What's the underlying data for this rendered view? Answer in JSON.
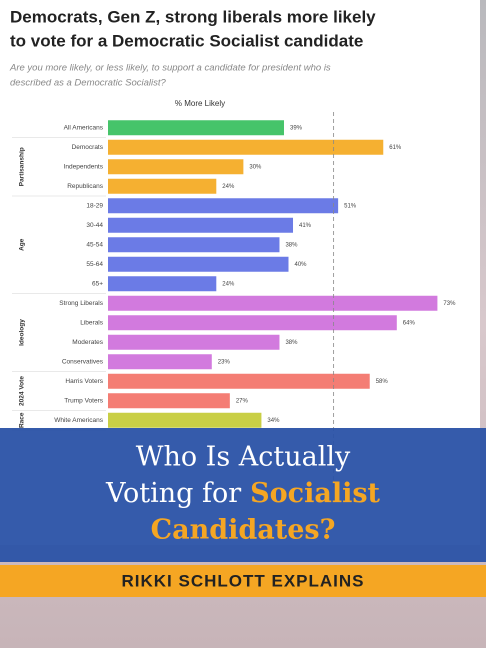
{
  "chart_data": {
    "type": "bar",
    "orientation": "horizontal",
    "title_lines": [
      "Democrats, Gen Z, strong liberals more likely",
      "to vote for a Democratic Socialist candidate"
    ],
    "subtitle_lines": [
      "Are you more likely, or less likely, to support a candidate for president who is",
      "described as a Democratic Socialist?"
    ],
    "axis_title": "% More Likely",
    "xlim": [
      0,
      80
    ],
    "reference_line": 50,
    "groups": [
      {
        "name": null,
        "color": "#46c46a",
        "categories": [
          "All Americans"
        ],
        "values": [
          39
        ],
        "value_labels": [
          "39%"
        ]
      },
      {
        "name": "Partisanship",
        "color": "#f5b031",
        "categories": [
          "Democrats",
          "Independents",
          "Republicans"
        ],
        "values": [
          61,
          30,
          24
        ],
        "value_labels": [
          "61%",
          "30%",
          "24%"
        ]
      },
      {
        "name": "Age",
        "color": "#6b7be6",
        "categories": [
          "18-29",
          "30-44",
          "45-54",
          "55-64",
          "65+"
        ],
        "values": [
          51,
          41,
          38,
          40,
          24
        ],
        "value_labels": [
          "51%",
          "41%",
          "38%",
          "40%",
          "24%"
        ]
      },
      {
        "name": "Ideology",
        "color": "#d27ade",
        "categories": [
          "Strong Liberals",
          "Liberals",
          "Moderates",
          "Conservatives"
        ],
        "values": [
          73,
          64,
          38,
          23
        ],
        "value_labels": [
          "73%",
          "64%",
          "38%",
          "23%"
        ]
      },
      {
        "name": "2024 Vote",
        "color": "#f47d74",
        "categories": [
          "Harris Voters",
          "Trump Voters"
        ],
        "values": [
          58,
          27
        ],
        "value_labels": [
          "58%",
          "27%"
        ]
      },
      {
        "name": "Race",
        "color": "#c9cf45",
        "categories": [
          "White Americans"
        ],
        "values": [
          34
        ],
        "value_labels": [
          "34%"
        ]
      }
    ]
  },
  "overlay": {
    "line1": "Who Is Actually",
    "line2_plain": "Voting for",
    "line2_highlight": "Socialist",
    "line3": "Candidates?",
    "byline": "RIKKI SCHLOTT EXPLAINS"
  }
}
